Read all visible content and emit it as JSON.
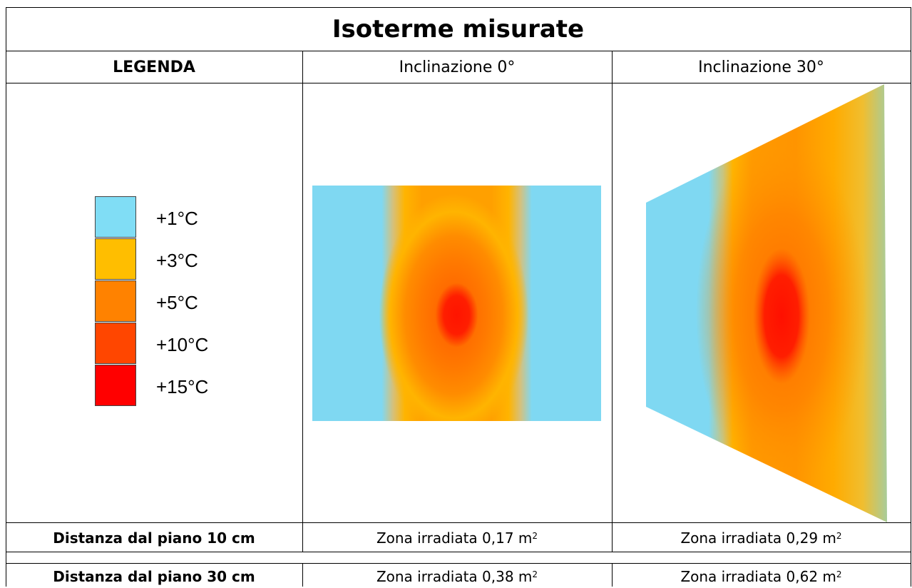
{
  "title": "Isoterme misurate",
  "headers": {
    "legend": "LEGENDA",
    "col1": "Inclinazione 0°",
    "col2": "Inclinazione 30°"
  },
  "legend_items": [
    {
      "label": "+1°C",
      "color": "#80DDF5"
    },
    {
      "label": "+3°C",
      "color": "#FFBE00"
    },
    {
      "label": "+5°C",
      "color": "#FF8200"
    },
    {
      "label": "+10°C",
      "color": "#FF4600"
    },
    {
      "label": "+15°C",
      "color": "#FF0000"
    }
  ],
  "rows": [
    {
      "label": "Distanza dal piano 10 cm",
      "c1": "Zona irradiata 0,17 m",
      "c2": "Zona  irradiata 0,29 m",
      "unit_exp": "2"
    },
    {
      "label": "Distanza dal piano 30 cm",
      "c1": "Zona  irradiata 0,38 m",
      "c2": "Zona  irradiata 0,62 m",
      "unit_exp": "2"
    }
  ]
}
